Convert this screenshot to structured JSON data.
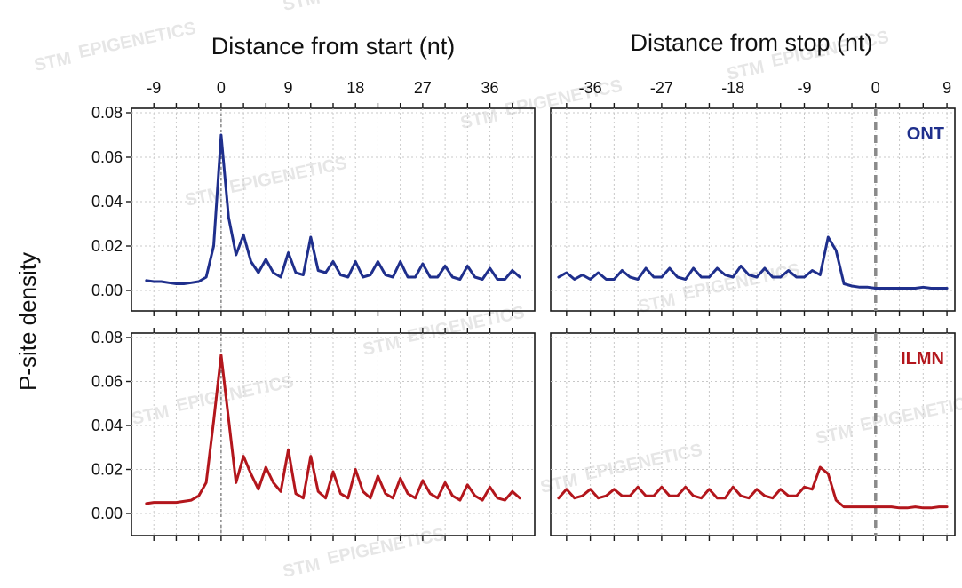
{
  "chart_data": {
    "type": "line",
    "titles": [
      "Distance from start (nt)",
      "Distance from stop (nt)"
    ],
    "ylabel": "P-site density",
    "ylim": [
      0,
      0.08
    ],
    "y_ticks": [
      "0.00",
      "0.02",
      "0.04",
      "0.06",
      "0.08"
    ],
    "y_tick_values": [
      0,
      0.02,
      0.04,
      0.06,
      0.08
    ],
    "start_ticks": [
      "-9",
      "0",
      "9",
      "18",
      "27",
      "36"
    ],
    "start_tick_values": [
      -9,
      0,
      9,
      18,
      27,
      36
    ],
    "stop_ticks": [
      "-36",
      "-27",
      "-18",
      "-9",
      "0",
      "9"
    ],
    "stop_tick_values": [
      -36,
      -27,
      -18,
      -9,
      0,
      9
    ],
    "start_xlim": [
      -12,
      42
    ],
    "stop_xlim": [
      -41,
      10
    ],
    "grid": true,
    "reference_line": {
      "start": 0,
      "stop": 0
    },
    "rows": [
      {
        "label": "ONT",
        "color": "#1f2f8c",
        "start": {
          "x": [
            -10,
            -9,
            -8,
            -7,
            -6,
            -5,
            -4,
            -3,
            -2,
            -1,
            0,
            1,
            2,
            3,
            4,
            5,
            6,
            7,
            8,
            9,
            10,
            11,
            12,
            13,
            14,
            15,
            16,
            17,
            18,
            19,
            20,
            21,
            22,
            23,
            24,
            25,
            26,
            27,
            28,
            29,
            30,
            31,
            32,
            33,
            34,
            35,
            36,
            37,
            38,
            39,
            40
          ],
          "y": [
            0.0045,
            0.004,
            0.004,
            0.0035,
            0.003,
            0.003,
            0.0035,
            0.004,
            0.006,
            0.02,
            0.07,
            0.033,
            0.016,
            0.025,
            0.013,
            0.008,
            0.014,
            0.008,
            0.006,
            0.017,
            0.008,
            0.007,
            0.024,
            0.009,
            0.008,
            0.013,
            0.007,
            0.006,
            0.013,
            0.006,
            0.007,
            0.013,
            0.007,
            0.006,
            0.013,
            0.006,
            0.006,
            0.012,
            0.006,
            0.006,
            0.011,
            0.006,
            0.005,
            0.011,
            0.006,
            0.005,
            0.01,
            0.005,
            0.005,
            0.009,
            0.006
          ]
        },
        "stop": {
          "x": [
            -40,
            -39,
            -38,
            -37,
            -36,
            -35,
            -34,
            -33,
            -32,
            -31,
            -30,
            -29,
            -28,
            -27,
            -26,
            -25,
            -24,
            -23,
            -22,
            -21,
            -20,
            -19,
            -18,
            -17,
            -16,
            -15,
            -14,
            -13,
            -12,
            -11,
            -10,
            -9,
            -8,
            -7,
            -6,
            -5,
            -4,
            -3,
            -2,
            -1,
            0,
            1,
            2,
            3,
            4,
            5,
            6,
            7,
            8,
            9
          ],
          "y": [
            0.006,
            0.008,
            0.005,
            0.007,
            0.005,
            0.008,
            0.005,
            0.005,
            0.009,
            0.006,
            0.005,
            0.01,
            0.006,
            0.006,
            0.01,
            0.006,
            0.005,
            0.01,
            0.006,
            0.006,
            0.01,
            0.007,
            0.006,
            0.011,
            0.007,
            0.006,
            0.01,
            0.006,
            0.006,
            0.009,
            0.006,
            0.006,
            0.009,
            0.007,
            0.024,
            0.018,
            0.003,
            0.002,
            0.0015,
            0.0015,
            0.001,
            0.001,
            0.001,
            0.001,
            0.001,
            0.001,
            0.0015,
            0.001,
            0.001,
            0.001
          ]
        }
      },
      {
        "label": "ILMN",
        "color": "#b3161c",
        "start": {
          "x": [
            -10,
            -9,
            -8,
            -7,
            -6,
            -5,
            -4,
            -3,
            -2,
            -1,
            0,
            1,
            2,
            3,
            4,
            5,
            6,
            7,
            8,
            9,
            10,
            11,
            12,
            13,
            14,
            15,
            16,
            17,
            18,
            19,
            20,
            21,
            22,
            23,
            24,
            25,
            26,
            27,
            28,
            29,
            30,
            31,
            32,
            33,
            34,
            35,
            36,
            37,
            38,
            39,
            40
          ],
          "y": [
            0.0045,
            0.005,
            0.005,
            0.005,
            0.005,
            0.0055,
            0.006,
            0.008,
            0.014,
            0.042,
            0.072,
            0.043,
            0.014,
            0.026,
            0.018,
            0.011,
            0.021,
            0.014,
            0.01,
            0.029,
            0.009,
            0.007,
            0.026,
            0.01,
            0.007,
            0.019,
            0.009,
            0.007,
            0.02,
            0.01,
            0.007,
            0.017,
            0.009,
            0.007,
            0.016,
            0.009,
            0.007,
            0.015,
            0.009,
            0.007,
            0.014,
            0.008,
            0.006,
            0.013,
            0.008,
            0.006,
            0.012,
            0.007,
            0.006,
            0.01,
            0.007
          ]
        },
        "stop": {
          "x": [
            -40,
            -39,
            -38,
            -37,
            -36,
            -35,
            -34,
            -33,
            -32,
            -31,
            -30,
            -29,
            -28,
            -27,
            -26,
            -25,
            -24,
            -23,
            -22,
            -21,
            -20,
            -19,
            -18,
            -17,
            -16,
            -15,
            -14,
            -13,
            -12,
            -11,
            -10,
            -9,
            -8,
            -7,
            -6,
            -5,
            -4,
            -3,
            -2,
            -1,
            0,
            1,
            2,
            3,
            4,
            5,
            6,
            7,
            8,
            9
          ],
          "y": [
            0.007,
            0.011,
            0.007,
            0.008,
            0.011,
            0.007,
            0.008,
            0.011,
            0.008,
            0.008,
            0.012,
            0.008,
            0.008,
            0.012,
            0.008,
            0.008,
            0.012,
            0.008,
            0.007,
            0.011,
            0.007,
            0.007,
            0.012,
            0.008,
            0.007,
            0.011,
            0.008,
            0.007,
            0.011,
            0.008,
            0.008,
            0.012,
            0.011,
            0.021,
            0.018,
            0.006,
            0.003,
            0.003,
            0.003,
            0.003,
            0.003,
            0.003,
            0.003,
            0.0025,
            0.0025,
            0.003,
            0.0025,
            0.0025,
            0.003,
            0.003
          ]
        }
      }
    ]
  },
  "watermark": {
    "brand": "STM",
    "sub": "EPIGENETICS"
  }
}
